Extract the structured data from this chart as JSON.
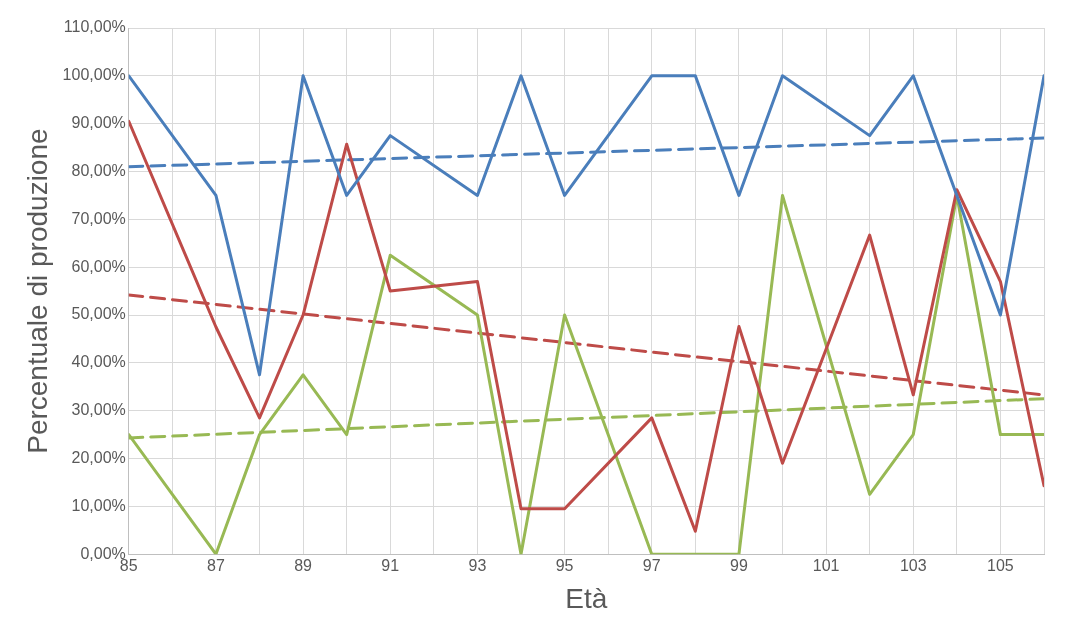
{
  "chart_data": {
    "type": "line",
    "xlabel": "Età",
    "ylabel": "Percentuale di produzione",
    "xlim": [
      85,
      106
    ],
    "ylim": [
      0,
      110
    ],
    "xticks": [
      85,
      {
        "value": 86,
        "label": null
      },
      87,
      {
        "value": 88,
        "label": null
      },
      89,
      {
        "value": 90,
        "label": null
      },
      91,
      {
        "value": 92,
        "label": null
      },
      93,
      {
        "value": 94,
        "label": null
      },
      95,
      {
        "value": 96,
        "label": null
      },
      97,
      {
        "value": 98,
        "label": null
      },
      99,
      {
        "value": 100,
        "label": null
      },
      101,
      {
        "value": 102,
        "label": null
      },
      103,
      {
        "value": 104,
        "label": null
      },
      105,
      {
        "value": 106,
        "label": null
      }
    ],
    "yticks": [
      {
        "value": 0,
        "label": "0,00%"
      },
      {
        "value": 10,
        "label": "10,00%"
      },
      {
        "value": 20,
        "label": "20,00%"
      },
      {
        "value": 30,
        "label": "30,00%"
      },
      {
        "value": 40,
        "label": "40,00%"
      },
      {
        "value": 50,
        "label": "50,00%"
      },
      {
        "value": 60,
        "label": "60,00%"
      },
      {
        "value": 70,
        "label": "70,00%"
      },
      {
        "value": 80,
        "label": "80,00%"
      },
      {
        "value": 90,
        "label": "90,00%"
      },
      {
        "value": 100,
        "label": "100,00%"
      },
      {
        "value": 110,
        "label": "110,00%"
      }
    ],
    "grid": true,
    "legend": false,
    "marker": "none",
    "series": [
      {
        "color": "#4a7ebb",
        "line_style": "solid",
        "x": [
          85,
          87,
          88,
          89,
          90,
          91,
          93,
          94,
          95,
          97,
          98,
          99,
          100,
          102,
          103,
          104,
          105,
          106
        ],
        "values": [
          100,
          75,
          37.5,
          100,
          75,
          87.5,
          75,
          100,
          75,
          100,
          100,
          75,
          100,
          87.5,
          100,
          75,
          50,
          100
        ]
      },
      {
        "color": "#be4b48",
        "line_style": "solid",
        "x": [
          85,
          87,
          88,
          89,
          90,
          91,
          93,
          94,
          95,
          97,
          98,
          99,
          100,
          102,
          103,
          104,
          105,
          106
        ],
        "values": [
          90.5,
          47.5,
          28.5,
          50,
          85.7,
          55,
          57,
          9.5,
          9.5,
          28.5,
          4.8,
          47.6,
          19,
          66.7,
          33.3,
          76.2,
          57,
          14.3
        ]
      },
      {
        "color": "#98b954",
        "line_style": "solid",
        "x": [
          85,
          87,
          88,
          89,
          90,
          91,
          93,
          94,
          95,
          97,
          98,
          99,
          100,
          102,
          103,
          104,
          105,
          106
        ],
        "values": [
          25,
          0,
          25,
          37.5,
          25,
          62.5,
          50,
          0,
          50,
          0,
          0,
          0,
          75,
          12.5,
          25,
          75,
          25,
          25
        ]
      },
      {
        "type": "line",
        "color": "#4a7ebb",
        "line_style": "dashed",
        "x": [
          85,
          106
        ],
        "values": [
          81,
          87
        ]
      },
      {
        "type": "line",
        "color": "#be4b48",
        "line_style": "dashed",
        "x": [
          85,
          106
        ],
        "values": [
          54.2,
          33.3
        ]
      },
      {
        "type": "line",
        "color": "#98b954",
        "line_style": "dashed",
        "x": [
          85,
          106
        ],
        "values": [
          24.3,
          32.5
        ]
      }
    ]
  }
}
